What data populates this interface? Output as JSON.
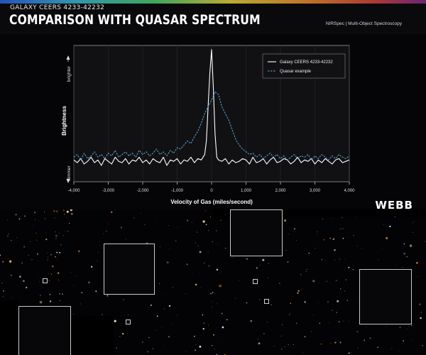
{
  "header": {
    "galaxy_tag": "GALAXY CEERS 4233-42232",
    "title": "COMPARISON WITH QUASAR SPECTRUM",
    "instrument": "NIRSpec | Multi-Object Spectroscopy"
  },
  "logo": "WEBB",
  "colors": {
    "galaxy_line": "#ffffff",
    "quasar_line": "#5aa9d6",
    "plot_bg": "#111114",
    "page_bg": "#000000"
  },
  "chart_data": {
    "type": "line",
    "title": "",
    "xlabel": "Velocity of Gas (miles/second)",
    "ylabel": "Brightness",
    "y_end_labels": {
      "top": "brighter",
      "bottom": "dimmer"
    },
    "xlim": [
      -4000,
      4000
    ],
    "xticks": [
      -4000,
      -3000,
      -2000,
      -1000,
      0,
      1000,
      2000,
      3000,
      4000
    ],
    "xtick_labels": [
      "-4,000",
      "-3,000",
      "-2,000",
      "-1,000",
      "0",
      "1,000",
      "2,000",
      "3,000",
      "4,000"
    ],
    "ylim": [
      0,
      1
    ],
    "grid": true,
    "legend": "top-right",
    "series": [
      {
        "name": "Galaxy CEERS 4233-42232",
        "style": "solid",
        "x": [
          -4000,
          -3900,
          -3800,
          -3700,
          -3600,
          -3500,
          -3400,
          -3300,
          -3200,
          -3100,
          -3000,
          -2900,
          -2800,
          -2700,
          -2600,
          -2500,
          -2400,
          -2300,
          -2200,
          -2100,
          -2000,
          -1900,
          -1800,
          -1700,
          -1600,
          -1500,
          -1400,
          -1300,
          -1200,
          -1100,
          -1000,
          -900,
          -800,
          -700,
          -600,
          -500,
          -400,
          -300,
          -200,
          -150,
          -100,
          -50,
          0,
          50,
          100,
          150,
          200,
          300,
          400,
          500,
          600,
          700,
          800,
          900,
          1000,
          1100,
          1200,
          1300,
          1400,
          1500,
          1600,
          1700,
          1800,
          1900,
          2000,
          2100,
          2200,
          2300,
          2400,
          2500,
          2600,
          2700,
          2800,
          2900,
          3000,
          3100,
          3200,
          3300,
          3400,
          3500,
          3600,
          3700,
          3800,
          3900,
          4000
        ],
        "y": [
          0.16,
          0.14,
          0.17,
          0.13,
          0.15,
          0.18,
          0.14,
          0.16,
          0.12,
          0.17,
          0.15,
          0.13,
          0.18,
          0.15,
          0.14,
          0.17,
          0.13,
          0.16,
          0.15,
          0.18,
          0.14,
          0.16,
          0.13,
          0.17,
          0.15,
          0.14,
          0.18,
          0.12,
          0.16,
          0.15,
          0.17,
          0.13,
          0.16,
          0.15,
          0.18,
          0.14,
          0.17,
          0.16,
          0.2,
          0.3,
          0.55,
          0.8,
          0.97,
          0.7,
          0.35,
          0.18,
          0.16,
          0.15,
          0.17,
          0.13,
          0.16,
          0.14,
          0.15,
          0.17,
          0.16,
          0.13,
          0.18,
          0.14,
          0.15,
          0.17,
          0.13,
          0.16,
          0.18,
          0.14,
          0.15,
          0.17,
          0.16,
          0.13,
          0.15,
          0.18,
          0.14,
          0.16,
          0.15,
          0.17,
          0.13,
          0.16,
          0.14,
          0.17,
          0.15,
          0.13,
          0.16,
          0.17,
          0.14,
          0.15,
          0.16
        ]
      },
      {
        "name": "Quasar example",
        "style": "dashed",
        "x": [
          -4000,
          -3900,
          -3800,
          -3700,
          -3600,
          -3500,
          -3400,
          -3300,
          -3200,
          -3100,
          -3000,
          -2900,
          -2800,
          -2700,
          -2600,
          -2500,
          -2400,
          -2300,
          -2200,
          -2100,
          -2000,
          -1900,
          -1800,
          -1700,
          -1600,
          -1500,
          -1400,
          -1300,
          -1200,
          -1100,
          -1000,
          -900,
          -800,
          -700,
          -600,
          -500,
          -400,
          -300,
          -200,
          -100,
          0,
          100,
          200,
          300,
          400,
          500,
          600,
          700,
          800,
          900,
          1000,
          1100,
          1200,
          1300,
          1400,
          1500,
          1600,
          1700,
          1800,
          1900,
          2000,
          2100,
          2200,
          2300,
          2400,
          2500,
          2600,
          2700,
          2800,
          2900,
          3000,
          3100,
          3200,
          3300,
          3400,
          3500,
          3600,
          3700,
          3800,
          3900,
          4000
        ],
        "y": [
          0.18,
          0.2,
          0.16,
          0.21,
          0.17,
          0.19,
          0.22,
          0.18,
          0.2,
          0.17,
          0.21,
          0.19,
          0.23,
          0.18,
          0.2,
          0.22,
          0.19,
          0.21,
          0.18,
          0.23,
          0.2,
          0.22,
          0.19,
          0.21,
          0.24,
          0.2,
          0.22,
          0.19,
          0.23,
          0.21,
          0.25,
          0.24,
          0.27,
          0.3,
          0.28,
          0.33,
          0.37,
          0.43,
          0.5,
          0.55,
          0.6,
          0.66,
          0.64,
          0.55,
          0.5,
          0.45,
          0.38,
          0.31,
          0.27,
          0.24,
          0.22,
          0.2,
          0.21,
          0.18,
          0.2,
          0.17,
          0.19,
          0.21,
          0.18,
          0.2,
          0.17,
          0.19,
          0.16,
          0.18,
          0.2,
          0.17,
          0.19,
          0.18,
          0.2,
          0.16,
          0.19,
          0.17,
          0.2,
          0.18,
          0.16,
          0.19,
          0.17,
          0.2,
          0.18,
          0.17,
          0.19
        ]
      }
    ]
  }
}
